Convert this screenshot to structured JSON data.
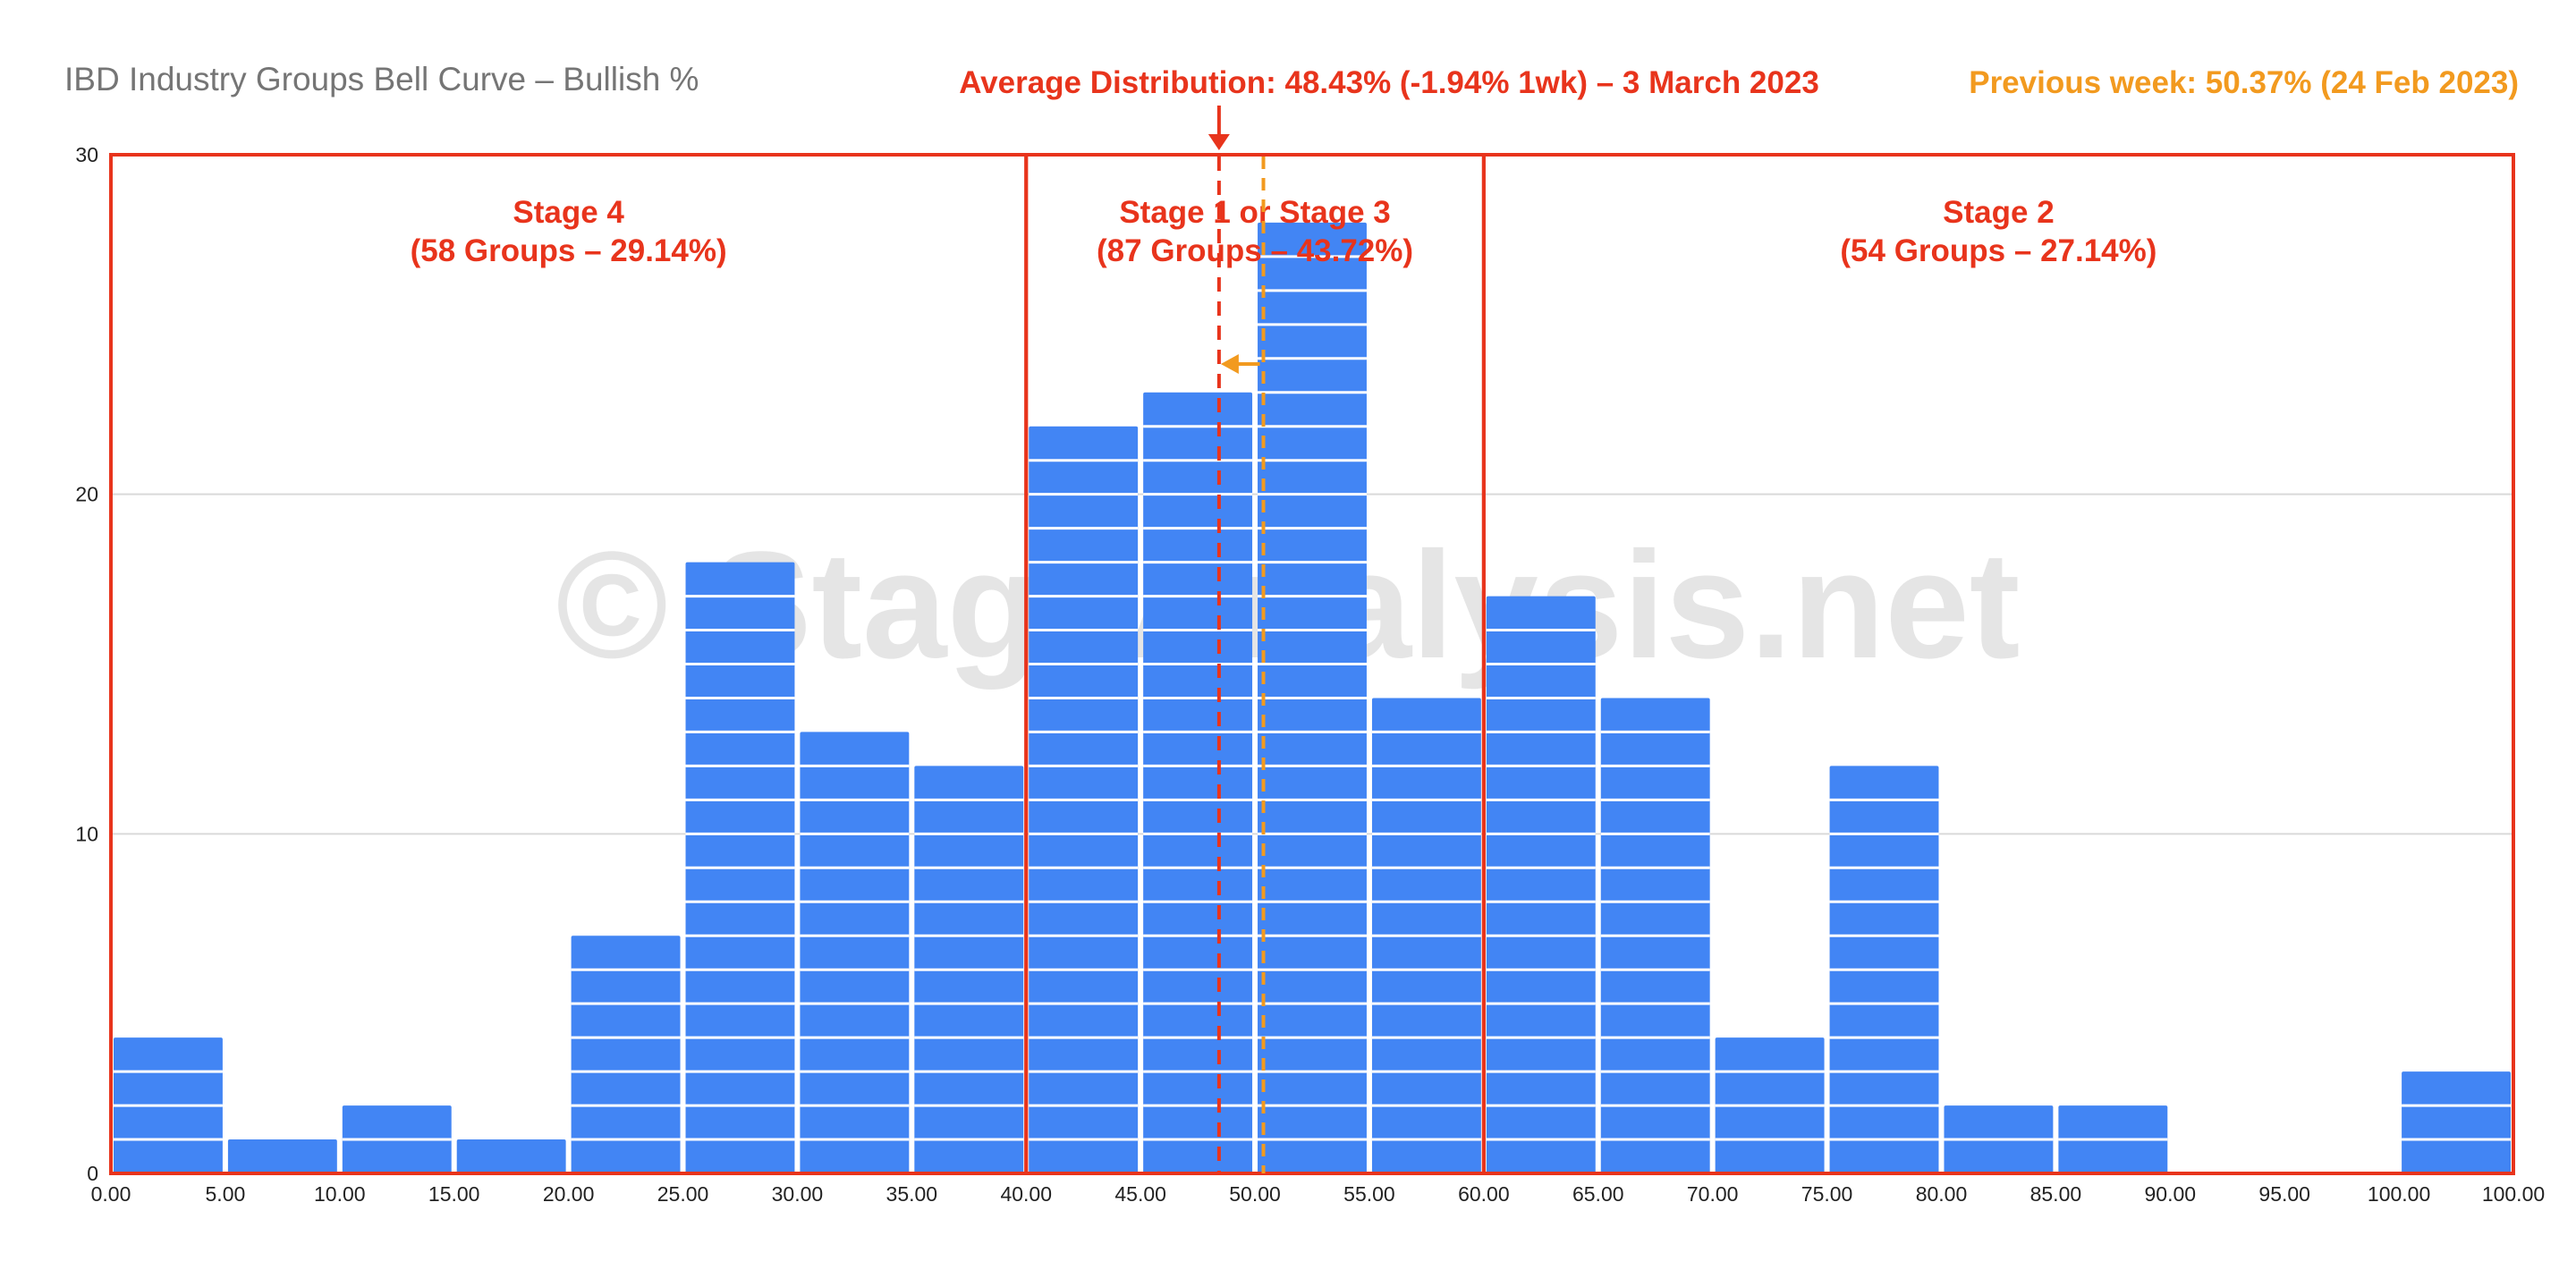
{
  "chart_data": {
    "type": "bar",
    "title": "IBD Industry Groups Bell Curve – Bullish %",
    "xlabel": "",
    "ylabel": "",
    "x_range": [
      0,
      100
    ],
    "ylim": [
      0,
      30
    ],
    "yticks": [
      0,
      10,
      20,
      30
    ],
    "xticks": [
      "0.00",
      "5.00",
      "10.00",
      "15.00",
      "20.00",
      "25.00",
      "30.00",
      "35.00",
      "40.00",
      "45.00",
      "50.00",
      "55.00",
      "60.00",
      "65.00",
      "70.00",
      "75.00",
      "80.00",
      "85.00",
      "90.00",
      "95.00",
      "100.00",
      "100.00"
    ],
    "bins": [
      {
        "from": 0,
        "to": 5,
        "value": 4
      },
      {
        "from": 5,
        "to": 10,
        "value": 1
      },
      {
        "from": 10,
        "to": 15,
        "value": 2
      },
      {
        "from": 15,
        "to": 20,
        "value": 1
      },
      {
        "from": 20,
        "to": 25,
        "value": 7
      },
      {
        "from": 25,
        "to": 30,
        "value": 18
      },
      {
        "from": 30,
        "to": 35,
        "value": 13
      },
      {
        "from": 35,
        "to": 40,
        "value": 12
      },
      {
        "from": 40,
        "to": 45,
        "value": 22
      },
      {
        "from": 45,
        "to": 50,
        "value": 23
      },
      {
        "from": 50,
        "to": 55,
        "value": 28
      },
      {
        "from": 55,
        "to": 60,
        "value": 14
      },
      {
        "from": 60,
        "to": 65,
        "value": 17
      },
      {
        "from": 65,
        "to": 70,
        "value": 14
      },
      {
        "from": 70,
        "to": 75,
        "value": 4
      },
      {
        "from": 75,
        "to": 80,
        "value": 12
      },
      {
        "from": 80,
        "to": 85,
        "value": 2
      },
      {
        "from": 85,
        "to": 90,
        "value": 2
      },
      {
        "from": 90,
        "to": 95,
        "value": 0
      },
      {
        "from": 95,
        "to": 100,
        "value": 0
      },
      {
        "from": 100,
        "to": 105,
        "value": 3
      }
    ],
    "grid": true,
    "colors": {
      "bar": "#4285F4",
      "accent_red": "#E8341C",
      "accent_orange": "#F29A1F",
      "grid": "#d9d9d9",
      "title": "#757575",
      "watermark": "#cfcfcf"
    },
    "annotations": {
      "average": {
        "label": "Average Distribution: 48.43% (-1.94% 1wk) – 3 March 2023",
        "value": 48.43
      },
      "previous": {
        "label": "Previous week: 50.37% (24 Feb 2023)",
        "value": 50.37
      }
    },
    "stages": [
      {
        "name": "Stage 4",
        "detail": "(58 Groups – 29.14%)",
        "from": 0,
        "to": 40
      },
      {
        "name": "Stage 1 or Stage 3",
        "detail": "(87 Groups – 43.72%)",
        "from": 40,
        "to": 60
      },
      {
        "name": "Stage 2",
        "detail": "(54 Groups – 27.14%)",
        "from": 60,
        "to": 105
      }
    ],
    "watermark": "© StageAnalysis.net"
  }
}
